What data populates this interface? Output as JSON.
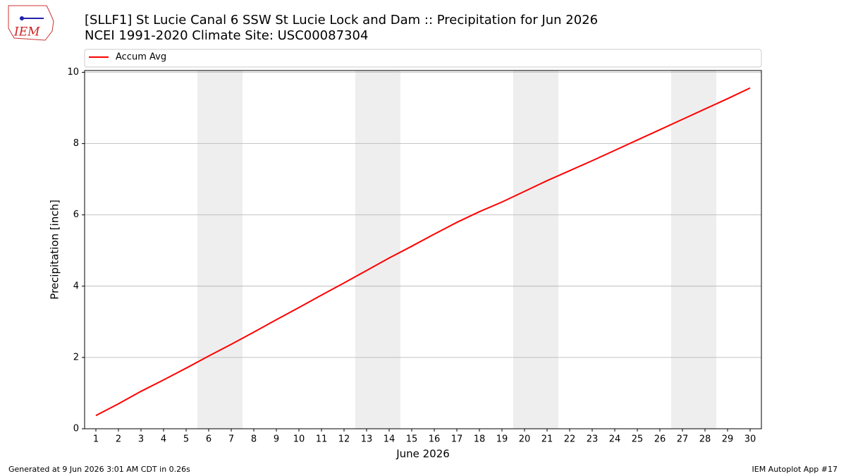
{
  "logo": "IEM",
  "chart_data": {
    "type": "line",
    "title": "[SLLF1] St Lucie Canal 6 SSW St Lucie Lock and Dam :: Precipitation for Jun 2026",
    "subtitle": "NCEI 1991-2020 Climate Site: USC00087304",
    "x_label": "June 2026",
    "y_label": "Precipitation [inch]",
    "x": [
      1,
      2,
      3,
      4,
      5,
      6,
      7,
      8,
      9,
      10,
      11,
      12,
      13,
      14,
      15,
      16,
      17,
      18,
      19,
      20,
      21,
      22,
      23,
      24,
      25,
      26,
      27,
      28,
      29,
      30
    ],
    "series": [
      {
        "name": "Accum Avg",
        "color": "#ff0000",
        "values": [
          0.37,
          0.7,
          1.05,
          1.37,
          1.7,
          2.04,
          2.37,
          2.71,
          3.06,
          3.4,
          3.75,
          4.09,
          4.44,
          4.79,
          5.12,
          5.46,
          5.79,
          6.09,
          6.36,
          6.66,
          6.96,
          7.24,
          7.52,
          7.81,
          8.1,
          8.39,
          8.68,
          8.97,
          9.26,
          9.56
        ]
      }
    ],
    "shaded_spans": [
      [
        5.5,
        7.5
      ],
      [
        12.5,
        14.5
      ],
      [
        19.5,
        21.5
      ],
      [
        26.5,
        28.5
      ]
    ],
    "xlim": [
      0.5,
      30.5
    ],
    "ylim": [
      0,
      10.05
    ],
    "xticks": [
      1,
      2,
      3,
      4,
      5,
      6,
      7,
      8,
      9,
      10,
      11,
      12,
      13,
      14,
      15,
      16,
      17,
      18,
      19,
      20,
      21,
      22,
      23,
      24,
      25,
      26,
      27,
      28,
      29,
      30
    ],
    "yticks": [
      0,
      2,
      4,
      6,
      8,
      10
    ],
    "grid": true,
    "legend": "top"
  },
  "footer": {
    "left": "Generated at 9 Jun 2026 3:01 AM CDT in 0.26s",
    "right": "IEM Autoplot App #17"
  }
}
